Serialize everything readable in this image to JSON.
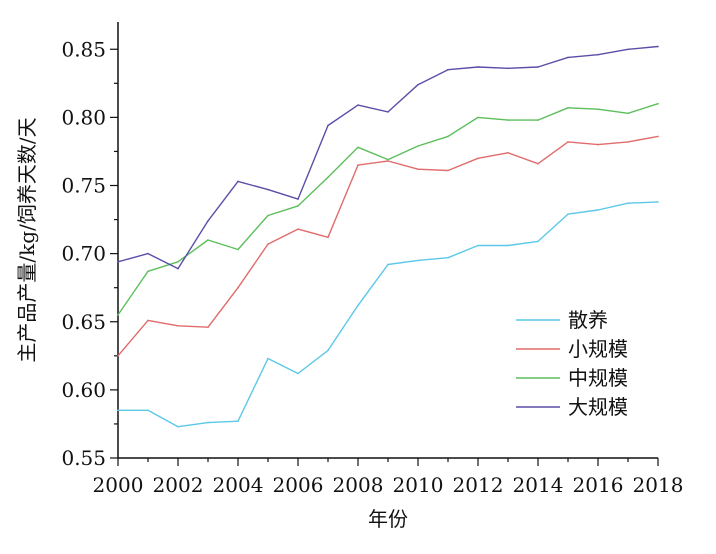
{
  "chart_data": {
    "type": "line",
    "xlabel": "年份",
    "ylabel": "主产品产量/kg/饲养天数/天",
    "xlim": [
      2000,
      2018
    ],
    "ylim": [
      0.55,
      0.87
    ],
    "xticks": [
      2000,
      2002,
      2004,
      2006,
      2008,
      2010,
      2012,
      2014,
      2016,
      2018
    ],
    "yticks": [
      0.55,
      0.6,
      0.65,
      0.7,
      0.75,
      0.8,
      0.85
    ],
    "xtick_labels": [
      "2000",
      "2002",
      "2004",
      "2006",
      "2008",
      "2010",
      "2012",
      "2014",
      "2016",
      "2018"
    ],
    "ytick_labels": [
      "0.55",
      "0.60",
      "0.65",
      "0.70",
      "0.75",
      "0.80",
      "0.85"
    ],
    "grid": false,
    "legend_position": "bottom-right",
    "x": [
      2000,
      2001,
      2002,
      2003,
      2004,
      2005,
      2006,
      2007,
      2008,
      2009,
      2010,
      2011,
      2012,
      2013,
      2014,
      2015,
      2016,
      2017,
      2018
    ],
    "series": [
      {
        "name": "散养",
        "color": "#5bc8e8",
        "values": [
          0.585,
          0.585,
          0.573,
          0.576,
          0.577,
          0.623,
          0.612,
          0.629,
          0.662,
          0.692,
          0.695,
          0.697,
          0.706,
          0.706,
          0.709,
          0.729,
          0.732,
          0.737,
          0.738
        ]
      },
      {
        "name": "小规模",
        "color": "#e06c6c",
        "values": [
          0.625,
          0.651,
          0.647,
          0.646,
          0.675,
          0.707,
          0.718,
          0.712,
          0.765,
          0.768,
          0.762,
          0.761,
          0.77,
          0.774,
          0.766,
          0.782,
          0.78,
          0.782,
          0.786
        ]
      },
      {
        "name": "中规模",
        "color": "#5cbf5c",
        "values": [
          0.655,
          0.687,
          0.694,
          0.71,
          0.703,
          0.728,
          0.735,
          0.756,
          0.778,
          0.769,
          0.779,
          0.786,
          0.8,
          0.798,
          0.798,
          0.807,
          0.806,
          0.803,
          0.81
        ]
      },
      {
        "name": "大规模",
        "color": "#5a4fa8",
        "values": [
          0.694,
          0.7,
          0.689,
          0.724,
          0.753,
          0.747,
          0.74,
          0.794,
          0.809,
          0.804,
          0.824,
          0.835,
          0.837,
          0.836,
          0.837,
          0.844,
          0.846,
          0.85,
          0.852
        ]
      }
    ]
  }
}
